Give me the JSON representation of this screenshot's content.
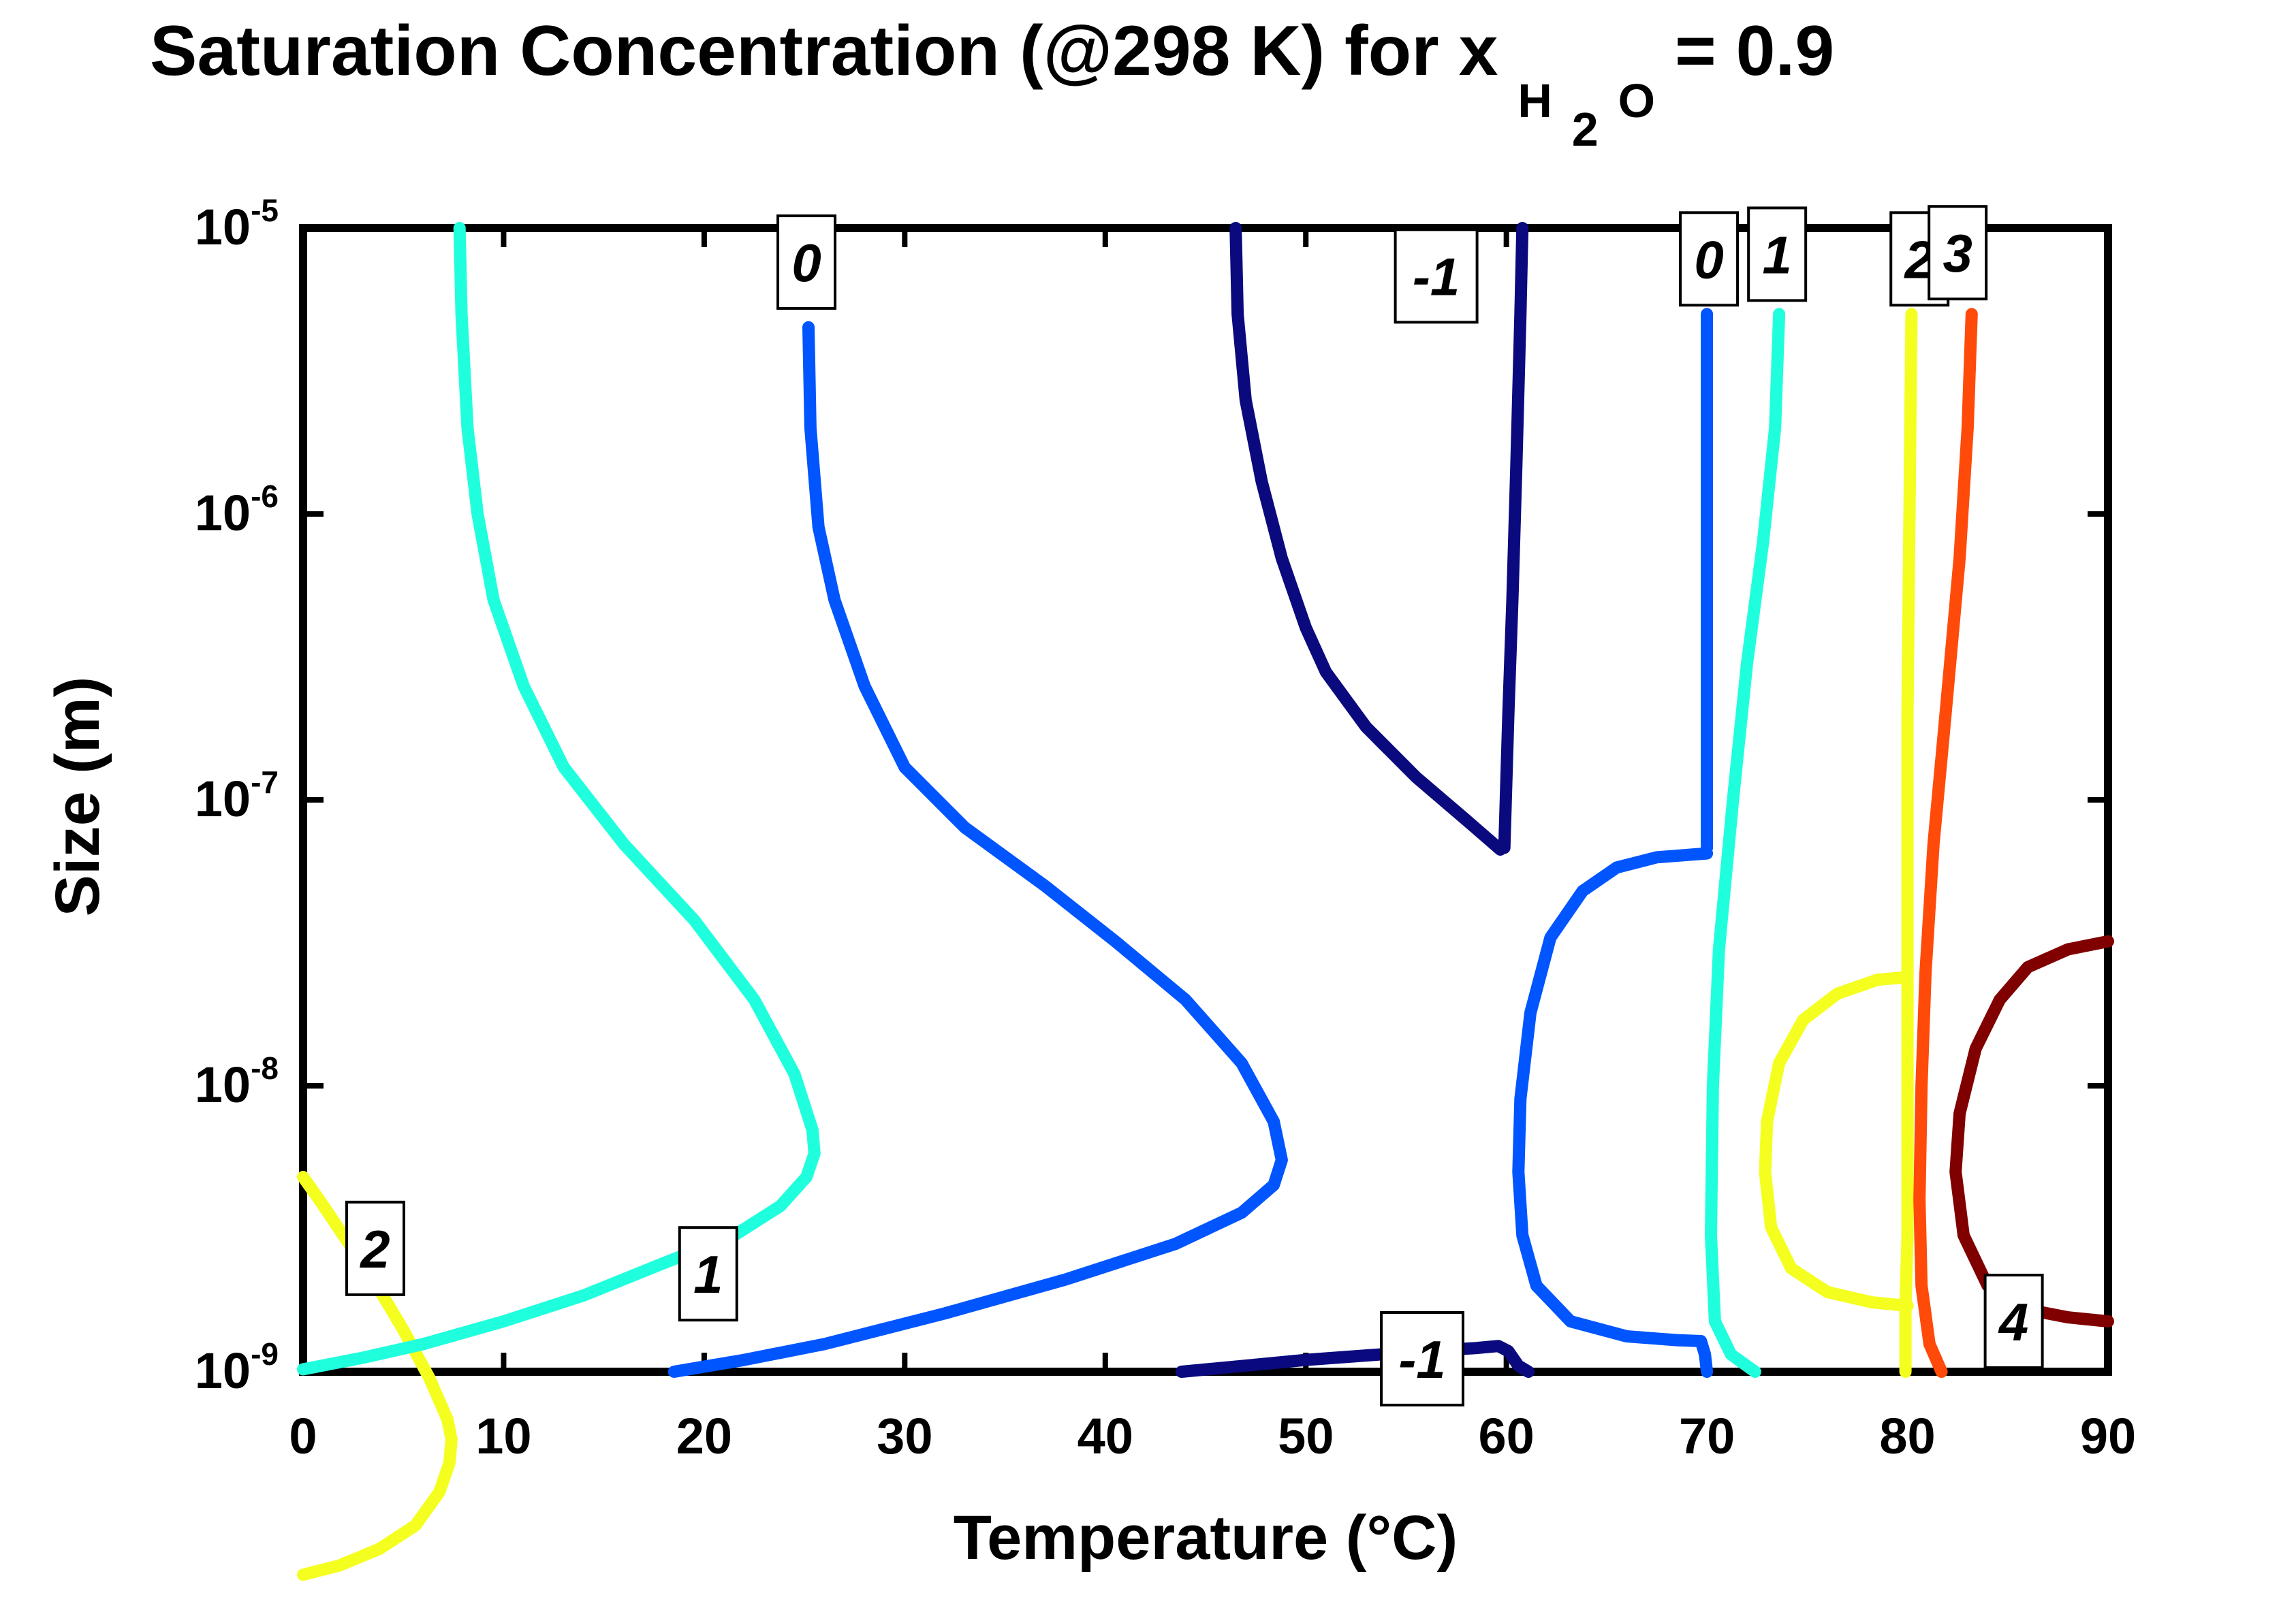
{
  "chart_data": {
    "type": "contour",
    "title": {
      "prefix": "Saturation Concentration (@298 K) for x",
      "subscript": "H",
      "subsubscript": "2",
      "subscript_tail": "O",
      "suffix": " = 0.9"
    },
    "xlabel": "Temperature (°C)",
    "ylabel": "Size (m)",
    "x_scale": "linear",
    "y_scale": "log",
    "xlim": [
      0,
      90
    ],
    "ylim": [
      1e-09,
      1e-05
    ],
    "x_ticks": [
      {
        "value": 0,
        "label": "0"
      },
      {
        "value": 10,
        "label": "10"
      },
      {
        "value": 20,
        "label": "20"
      },
      {
        "value": 30,
        "label": "30"
      },
      {
        "value": 40,
        "label": "40"
      },
      {
        "value": 50,
        "label": "50"
      },
      {
        "value": 60,
        "label": "60"
      },
      {
        "value": 70,
        "label": "70"
      },
      {
        "value": 80,
        "label": "80"
      },
      {
        "value": 90,
        "label": "90"
      }
    ],
    "y_ticks": [
      {
        "value": 1e-09,
        "base": "10",
        "exp": "-9"
      },
      {
        "value": 1e-08,
        "base": "10",
        "exp": "-8"
      },
      {
        "value": 1e-07,
        "base": "10",
        "exp": "-7"
      },
      {
        "value": 1e-06,
        "base": "10",
        "exp": "-6"
      },
      {
        "value": 1e-05,
        "base": "10",
        "exp": "-5"
      }
    ],
    "grid": false,
    "legend": "none",
    "contours": [
      {
        "level": "2",
        "color": "#f4ff20",
        "points": [
          [
            0,
            4.8e-09
          ],
          [
            0.8,
            4e-09
          ],
          [
            2,
            3e-09
          ],
          [
            3.5,
            2.1e-09
          ],
          [
            5,
            1.4e-09
          ],
          [
            6.3,
            9.5e-10
          ],
          [
            7.2,
            6.8e-10
          ],
          [
            7.4,
            5.8e-10
          ],
          [
            7.3,
            4.8e-10
          ],
          [
            6.8,
            3.8e-10
          ],
          [
            5.6,
            2.9e-10
          ],
          [
            3.8,
            2.4e-10
          ],
          [
            1.8,
            2.1e-10
          ],
          [
            0,
            1.95e-10
          ]
        ]
      },
      {
        "level": "1",
        "color": "#20ffdd",
        "points": [
          [
            7.8,
            1e-05
          ],
          [
            7.9,
            5e-06
          ],
          [
            8.2,
            2e-06
          ],
          [
            8.7,
            1e-06
          ],
          [
            9.5,
            5e-07
          ],
          [
            11,
            2.5e-07
          ],
          [
            13,
            1.3e-07
          ],
          [
            16,
            7e-08
          ],
          [
            19.5,
            3.8e-08
          ],
          [
            22.5,
            2e-08
          ],
          [
            24.5,
            1.1e-08
          ],
          [
            25.4,
            7e-09
          ],
          [
            25.5,
            5.8e-09
          ],
          [
            25.1,
            4.8e-09
          ],
          [
            23.8,
            3.8e-09
          ],
          [
            21.5,
            3e-09
          ],
          [
            18,
            2.4e-09
          ],
          [
            14,
            1.85e-09
          ],
          [
            10,
            1.5e-09
          ],
          [
            6,
            1.25e-09
          ],
          [
            3,
            1.12e-09
          ],
          [
            0,
            1.02e-09
          ]
        ]
      },
      {
        "level": "0",
        "color": "#0055ff",
        "points": [
          [
            25.2,
            4.5e-06
          ],
          [
            25.3,
            2e-06
          ],
          [
            25.7,
            9e-07
          ],
          [
            26.5,
            5e-07
          ],
          [
            28,
            2.5e-07
          ],
          [
            30,
            1.3e-07
          ],
          [
            33,
            8e-08
          ],
          [
            37,
            5e-08
          ],
          [
            40.5,
            3.2e-08
          ],
          [
            44,
            2e-08
          ],
          [
            46.8,
            1.2e-08
          ],
          [
            48.4,
            7.5e-09
          ],
          [
            48.8,
            5.5e-09
          ],
          [
            48.4,
            4.5e-09
          ],
          [
            46.8,
            3.6e-09
          ],
          [
            43.5,
            2.8e-09
          ],
          [
            38,
            2.1e-09
          ],
          [
            32,
            1.6e-09
          ],
          [
            26,
            1.25e-09
          ],
          [
            22,
            1.1e-09
          ],
          [
            18.5,
            1e-09
          ]
        ]
      },
      {
        "level": "-1",
        "color": "#0a0a7e",
        "points": [
          [
            46.5,
            1e-05
          ],
          [
            46.6,
            5e-06
          ],
          [
            47,
            2.5e-06
          ],
          [
            47.8,
            1.3e-06
          ],
          [
            48.8,
            7e-07
          ],
          [
            50,
            4e-07
          ],
          [
            51,
            2.8e-07
          ],
          [
            53,
            1.8e-07
          ],
          [
            55.5,
            1.2e-07
          ],
          [
            58,
            8.5e-08
          ],
          [
            59.7,
            6.7e-08
          ]
        ]
      },
      {
        "level": "-1",
        "color": "#0a0a7e",
        "points": [
          [
            59.9,
            6.8e-08
          ],
          [
            60.1,
            2e-07
          ],
          [
            60.3,
            5e-07
          ],
          [
            60.5,
            1.5e-06
          ],
          [
            60.7,
            5e-06
          ],
          [
            60.8,
            1e-05
          ]
        ]
      },
      {
        "level": "-1",
        "color": "#0a0a7e",
        "points": [
          [
            43.8,
            1e-09
          ],
          [
            47,
            1.05e-09
          ],
          [
            50,
            1.1e-09
          ],
          [
            53,
            1.14e-09
          ],
          [
            56,
            1.18e-09
          ],
          [
            58.5,
            1.21e-09
          ],
          [
            59.6,
            1.23e-09
          ],
          [
            60.1,
            1.18e-09
          ],
          [
            60.6,
            1.05e-09
          ],
          [
            61.1,
            1e-09
          ]
        ]
      },
      {
        "level": "0",
        "color": "#0055ff",
        "points": [
          [
            70,
            6.8e-08
          ],
          [
            70,
            2e-07
          ],
          [
            70,
            6e-07
          ],
          [
            70,
            2e-06
          ],
          [
            70,
            5e-06
          ]
        ]
      },
      {
        "level": "0",
        "color": "#0055ff",
        "points": [
          [
            70,
            6.5e-08
          ],
          [
            67.5,
            6.3e-08
          ],
          [
            65.5,
            5.8e-08
          ],
          [
            63.8,
            4.8e-08
          ],
          [
            62.2,
            3.3e-08
          ],
          [
            61.2,
            1.8e-08
          ],
          [
            60.7,
            9e-09
          ],
          [
            60.6,
            5e-09
          ],
          [
            60.8,
            3e-09
          ],
          [
            61.5,
            2e-09
          ],
          [
            63.2,
            1.5e-09
          ],
          [
            66,
            1.33e-09
          ],
          [
            68.5,
            1.29e-09
          ],
          [
            69.7,
            1.28e-09
          ],
          [
            69.9,
            1.15e-09
          ],
          [
            70,
            1e-09
          ]
        ]
      },
      {
        "level": "1",
        "color": "#20ffdd",
        "points": [
          [
            73.6,
            5e-06
          ],
          [
            73.4,
            2e-06
          ],
          [
            72.8,
            8e-07
          ],
          [
            72,
            3e-07
          ],
          [
            71.3,
            1e-07
          ],
          [
            70.6,
            3e-08
          ],
          [
            70.3,
            1e-08
          ],
          [
            70.2,
            3e-09
          ],
          [
            70.4,
            1.5e-09
          ],
          [
            71.2,
            1.15e-09
          ],
          [
            72.4,
            1e-09
          ]
        ]
      },
      {
        "level": "2",
        "color": "#f4ff20",
        "points": [
          [
            80.2,
            5e-06
          ],
          [
            80.1,
            1e-06
          ],
          [
            80,
            2e-07
          ],
          [
            80,
            5e-08
          ],
          [
            80,
            2.4e-08
          ],
          [
            80,
            8e-09
          ],
          [
            80,
            3e-09
          ],
          [
            79.9,
            1.7e-09
          ],
          [
            79.9,
            1e-09
          ]
        ]
      },
      {
        "level": "2",
        "color": "#f4ff20",
        "points": [
          [
            80,
            2.4e-08
          ],
          [
            78.5,
            2.35e-08
          ],
          [
            76.5,
            2.1e-08
          ],
          [
            74.8,
            1.7e-08
          ],
          [
            73.6,
            1.2e-08
          ],
          [
            73,
            7.5e-09
          ],
          [
            72.9,
            5e-09
          ],
          [
            73.2,
            3.2e-09
          ],
          [
            74.2,
            2.3e-09
          ],
          [
            76,
            1.9e-09
          ],
          [
            78.2,
            1.75e-09
          ],
          [
            80,
            1.7e-09
          ]
        ]
      },
      {
        "level": "3",
        "color": "#ff4a0a",
        "points": [
          [
            83.2,
            5e-06
          ],
          [
            83,
            2e-06
          ],
          [
            82.6,
            7e-07
          ],
          [
            81.9,
            2e-07
          ],
          [
            81.3,
            7e-08
          ],
          [
            80.9,
            2.5e-08
          ],
          [
            80.7,
            1e-08
          ],
          [
            80.6,
            4e-09
          ],
          [
            80.7,
            2e-09
          ],
          [
            81.1,
            1.25e-09
          ],
          [
            81.7,
            1e-09
          ]
        ]
      },
      {
        "level": "4",
        "color": "#800000",
        "points": [
          [
            90,
            3.2e-08
          ],
          [
            88,
            3e-08
          ],
          [
            86,
            2.6e-08
          ],
          [
            84.6,
            2e-08
          ],
          [
            83.4,
            1.35e-08
          ],
          [
            82.6,
            8e-09
          ],
          [
            82.4,
            5e-09
          ],
          [
            82.8,
            3e-09
          ],
          [
            84,
            2e-09
          ],
          [
            86,
            1.65e-09
          ],
          [
            88,
            1.55e-09
          ],
          [
            90,
            1.5e-09
          ]
        ]
      }
    ],
    "labels": [
      {
        "text": "2",
        "x": 3.6,
        "y": 2.7e-09
      },
      {
        "text": "1",
        "x": 20.2,
        "y": 2.2e-09
      },
      {
        "text": "0",
        "x": 25.1,
        "y": 7.6e-06
      },
      {
        "text": "-1",
        "x": 56.5,
        "y": 6.8e-06
      },
      {
        "text": "-1",
        "x": 55.8,
        "y": 1.11e-09
      },
      {
        "text": "0",
        "x": 70.1,
        "y": 7.8e-06
      },
      {
        "text": "1",
        "x": 73.5,
        "y": 8.1e-06
      },
      {
        "text": "2",
        "x": 80.6,
        "y": 7.8e-06
      },
      {
        "text": "3",
        "x": 82.5,
        "y": 8.2e-06
      },
      {
        "text": "4",
        "x": 85.3,
        "y": 1.5e-09
      }
    ]
  }
}
